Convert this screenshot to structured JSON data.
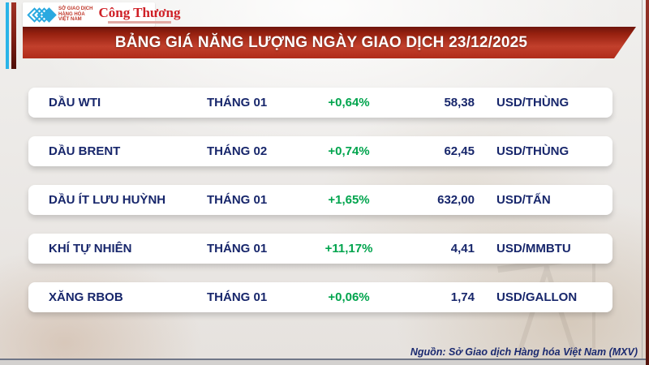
{
  "header": {
    "mxv_logo_lines": [
      "SỞ GIAO DỊCH",
      "HÀNG HÓA",
      "VIỆT NAM"
    ],
    "congthuong_logo": "Công Thương",
    "banner_title": "BẢNG GIÁ NĂNG LƯỢNG NGÀY GIAO DỊCH 23/12/2025"
  },
  "table": {
    "rows": [
      {
        "name": "DẦU WTI",
        "month": "THÁNG 01",
        "change": "+0,64%",
        "price": "58,38",
        "unit": "USD/THÙNG"
      },
      {
        "name": "DẦU BRENT",
        "month": "THÁNG 02",
        "change": "+0,74%",
        "price": "62,45",
        "unit": "USD/THÙNG"
      },
      {
        "name": "DẦU ÍT LƯU HUỲNH",
        "month": "THÁNG 01",
        "change": "+1,65%",
        "price": "632,00",
        "unit": "USD/TẤN"
      },
      {
        "name": "KHÍ TỰ NHIÊN",
        "month": "THÁNG 01",
        "change": "+11,17%",
        "price": "4,41",
        "unit": "USD/MMBTU"
      },
      {
        "name": "XĂNG RBOB",
        "month": "THÁNG 01",
        "change": "+0,06%",
        "price": "1,74",
        "unit": "USD/GALLON"
      }
    ]
  },
  "footer": {
    "source": "Nguồn: Sở Giao dịch Hàng hóa Việt Nam (MXV)"
  },
  "colors": {
    "banner_red": "#a8281a",
    "text_navy": "#17266b",
    "change_green": "#00a44d",
    "stripe_cyan": "#2ab4e8",
    "stripe_maroon": "#7c1d13"
  },
  "chart_data": {
    "type": "table",
    "title": "BẢNG GIÁ NĂNG LƯỢNG NGÀY GIAO DỊCH 23/12/2025",
    "rows": [
      {
        "commodity": "DẦU WTI",
        "contract_month": "THÁNG 01",
        "change_pct": 0.64,
        "price": 58.38,
        "unit": "USD/THÙNG"
      },
      {
        "commodity": "DẦU BRENT",
        "contract_month": "THÁNG 02",
        "change_pct": 0.74,
        "price": 62.45,
        "unit": "USD/THÙNG"
      },
      {
        "commodity": "DẦU ÍT LƯU HUỲNH",
        "contract_month": "THÁNG 01",
        "change_pct": 1.65,
        "price": 632.0,
        "unit": "USD/TẤN"
      },
      {
        "commodity": "KHÍ TỰ NHIÊN",
        "contract_month": "THÁNG 01",
        "change_pct": 11.17,
        "price": 4.41,
        "unit": "USD/MMBTU"
      },
      {
        "commodity": "XĂNG RBOB",
        "contract_month": "THÁNG 01",
        "change_pct": 0.06,
        "price": 1.74,
        "unit": "USD/GALLON"
      }
    ],
    "source": "Nguồn: Sở Giao dịch Hàng hóa Việt Nam (MXV)"
  }
}
